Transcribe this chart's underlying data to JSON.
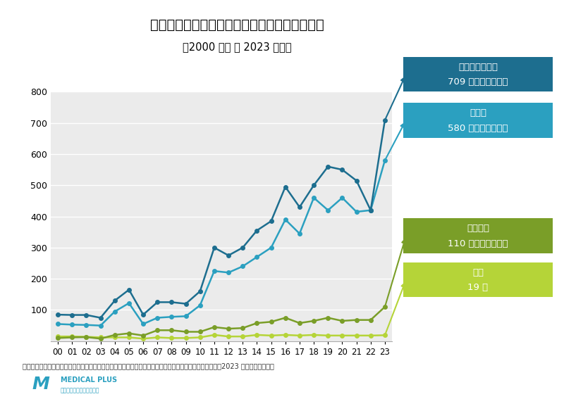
{
  "title": "医療機関経営事業者の休廃業・解散件数の推移",
  "subtitle": "（2000 年度 〜 2023 年度）",
  "years": [
    "00",
    "01",
    "02",
    "03",
    "04",
    "05",
    "06",
    "07",
    "08",
    "09",
    "10",
    "11",
    "12",
    "13",
    "14",
    "15",
    "16",
    "17",
    "18",
    "19",
    "20",
    "21",
    "22",
    "23"
  ],
  "total": [
    85,
    84,
    84,
    75,
    130,
    165,
    85,
    125,
    125,
    120,
    160,
    300,
    275,
    300,
    355,
    385,
    495,
    430,
    500,
    560,
    550,
    515,
    420,
    709
  ],
  "clinic": [
    55,
    53,
    52,
    50,
    95,
    122,
    55,
    75,
    78,
    80,
    115,
    225,
    220,
    240,
    270,
    300,
    390,
    345,
    460,
    420,
    460,
    415,
    420,
    580
  ],
  "dental": [
    10,
    12,
    13,
    8,
    20,
    25,
    18,
    35,
    35,
    30,
    30,
    45,
    40,
    42,
    58,
    62,
    75,
    58,
    65,
    75,
    65,
    68,
    68,
    110
  ],
  "hospital": [
    15,
    15,
    14,
    12,
    12,
    12,
    8,
    12,
    10,
    10,
    12,
    20,
    15,
    15,
    20,
    18,
    20,
    18,
    20,
    18,
    18,
    18,
    18,
    19
  ],
  "total_color": "#1d6e8f",
  "clinic_color": "#2ba0c0",
  "dental_color": "#7a9e28",
  "hospital_color": "#b5d438",
  "total_box_color": "#1d6e8f",
  "clinic_box_color": "#2ba0c0",
  "dental_box_color": "#7a9e28",
  "hospital_box_color": "#b5d438",
  "total_label1": "医療機関　合計",
  "total_label2": "709 件（過去最多）",
  "clinic_label1": "診療所",
  "clinic_label2": "580 件（過去最多）",
  "dental_label1": "歯科医院",
  "dental_label2": "110 件（過去最多）",
  "hospital_label1": "病院",
  "hospital_label2": "19 件",
  "ylim": [
    0,
    800
  ],
  "yticks": [
    0,
    100,
    200,
    300,
    400,
    500,
    600,
    700,
    800
  ],
  "footnote": "＊医療機関経営事業者の休廃業・解散件数の推移（出典：帝国データバンク「医療機関の『休廃業・解散』2023 年度　動向調査」",
  "plot_bg_color": "#ebebeb"
}
